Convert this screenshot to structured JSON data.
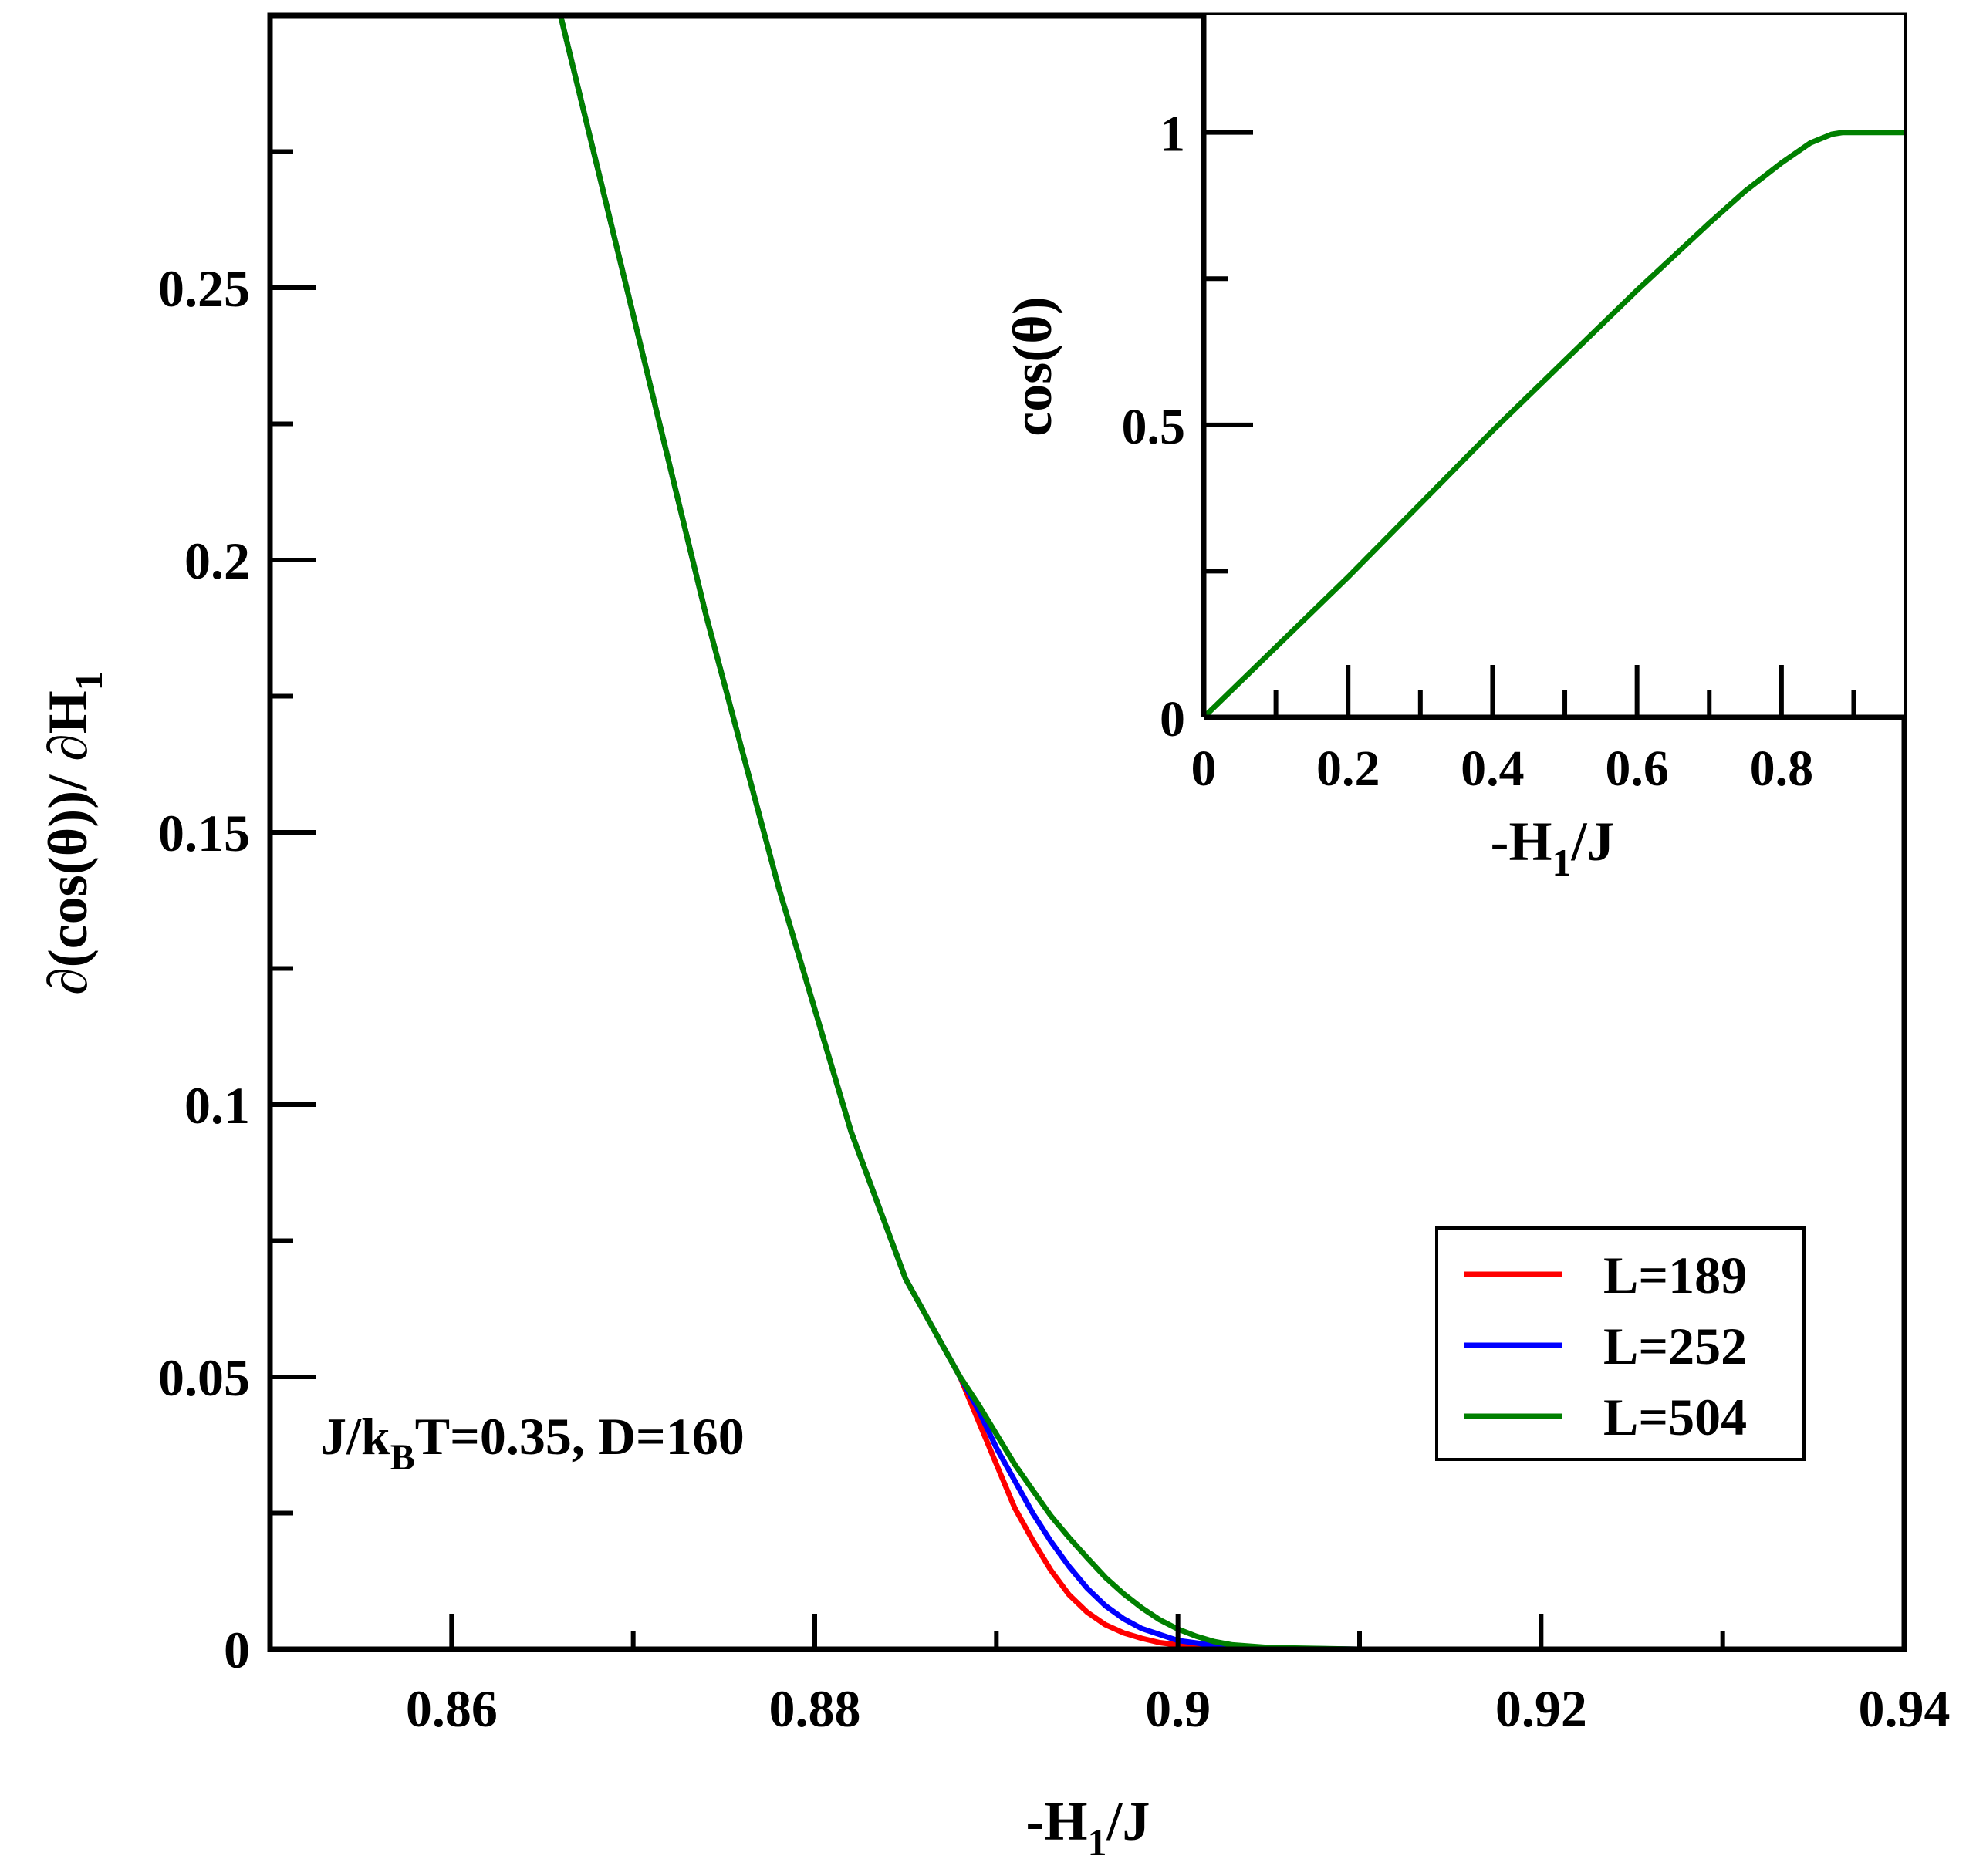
{
  "chart_data": [
    {
      "type": "line",
      "role": "main",
      "xlabel": {
        "prefix": "-H",
        "sub": "1",
        "suffix": "/J"
      },
      "ylabel": {
        "prefix": "∂(cos(θ))/ ∂H",
        "sub": "1"
      },
      "xlim": [
        0.85,
        0.94
      ],
      "ylim": [
        0,
        0.3
      ],
      "xticks": [
        0.86,
        0.88,
        0.9,
        0.92,
        0.94
      ],
      "xtick_labels": [
        "0.86",
        "0.88",
        "0.9",
        "0.92",
        "0.94"
      ],
      "yticks": [
        0,
        0.05,
        0.1,
        0.15,
        0.2,
        0.25
      ],
      "ytick_labels": [
        "0",
        "0.05",
        "0.1",
        "0.15",
        "0.2",
        "0.25"
      ],
      "annotation": {
        "prefix": "J/k",
        "sub": "B",
        "suffix": "T=0.35, D=160"
      },
      "legend_position": "bottom-right",
      "series": [
        {
          "name": "L=189",
          "color": "#ff0000",
          "x": [
            0.866,
            0.87,
            0.874,
            0.878,
            0.882,
            0.885,
            0.887,
            0.888,
            0.889,
            0.89,
            0.891,
            0.892,
            0.893,
            0.894,
            0.895,
            0.896,
            0.897,
            0.898,
            0.899,
            0.9,
            0.902,
            0.905,
            0.91,
            0.92,
            0.94
          ],
          "y": [
            0.3,
            0.245,
            0.19,
            0.14,
            0.095,
            0.068,
            0.056,
            0.05,
            0.042,
            0.034,
            0.026,
            0.02,
            0.0145,
            0.01,
            0.0068,
            0.0045,
            0.003,
            0.002,
            0.0012,
            0.0008,
            0.0004,
            0.0001,
            0.0,
            0.0,
            0.0
          ]
        },
        {
          "name": "L=252",
          "color": "#0000ff",
          "x": [
            0.866,
            0.87,
            0.874,
            0.878,
            0.882,
            0.885,
            0.887,
            0.888,
            0.889,
            0.89,
            0.891,
            0.892,
            0.893,
            0.894,
            0.895,
            0.896,
            0.897,
            0.898,
            0.9,
            0.902,
            0.905,
            0.91,
            0.92,
            0.94
          ],
          "y": [
            0.3,
            0.245,
            0.19,
            0.14,
            0.095,
            0.068,
            0.056,
            0.05,
            0.044,
            0.037,
            0.031,
            0.025,
            0.0198,
            0.0152,
            0.0112,
            0.008,
            0.0056,
            0.0038,
            0.0016,
            0.0007,
            0.0002,
            0.0,
            0.0,
            0.0
          ]
        },
        {
          "name": "L=504",
          "color": "#008000",
          "x": [
            0.866,
            0.87,
            0.874,
            0.878,
            0.882,
            0.885,
            0.887,
            0.888,
            0.889,
            0.89,
            0.891,
            0.892,
            0.893,
            0.894,
            0.895,
            0.896,
            0.897,
            0.898,
            0.899,
            0.9,
            0.901,
            0.902,
            0.903,
            0.905,
            0.91,
            0.92,
            0.94
          ],
          "y": [
            0.3,
            0.245,
            0.19,
            0.14,
            0.095,
            0.068,
            0.056,
            0.05,
            0.045,
            0.0395,
            0.034,
            0.0292,
            0.0245,
            0.0205,
            0.0168,
            0.0132,
            0.0102,
            0.0076,
            0.0054,
            0.0037,
            0.0024,
            0.0014,
            0.0008,
            0.0003,
            0.0,
            0.0,
            0.0
          ]
        }
      ]
    },
    {
      "type": "line",
      "role": "inset",
      "xlabel": {
        "prefix": "-H",
        "sub": "1",
        "suffix": "/J"
      },
      "ylabel": "cos(θ)",
      "xlim": [
        0,
        0.97
      ],
      "ylim": [
        0,
        1.2
      ],
      "xticks": [
        0,
        0.2,
        0.4,
        0.6,
        0.8
      ],
      "xtick_labels": [
        "0",
        "0.2",
        "0.4",
        "0.6",
        "0.8"
      ],
      "yticks": [
        0,
        0.5,
        1
      ],
      "ytick_labels": [
        "0",
        "0.5",
        "1"
      ],
      "series": [
        {
          "name": "L=504",
          "color": "#008000",
          "x": [
            0.0,
            0.1,
            0.2,
            0.3,
            0.4,
            0.5,
            0.6,
            0.7,
            0.75,
            0.8,
            0.84,
            0.87,
            0.885,
            0.9,
            0.97
          ],
          "y": [
            0.0,
            0.12,
            0.24,
            0.365,
            0.49,
            0.61,
            0.73,
            0.845,
            0.9,
            0.948,
            0.982,
            0.997,
            1.0,
            1.0,
            1.0
          ]
        }
      ]
    }
  ]
}
